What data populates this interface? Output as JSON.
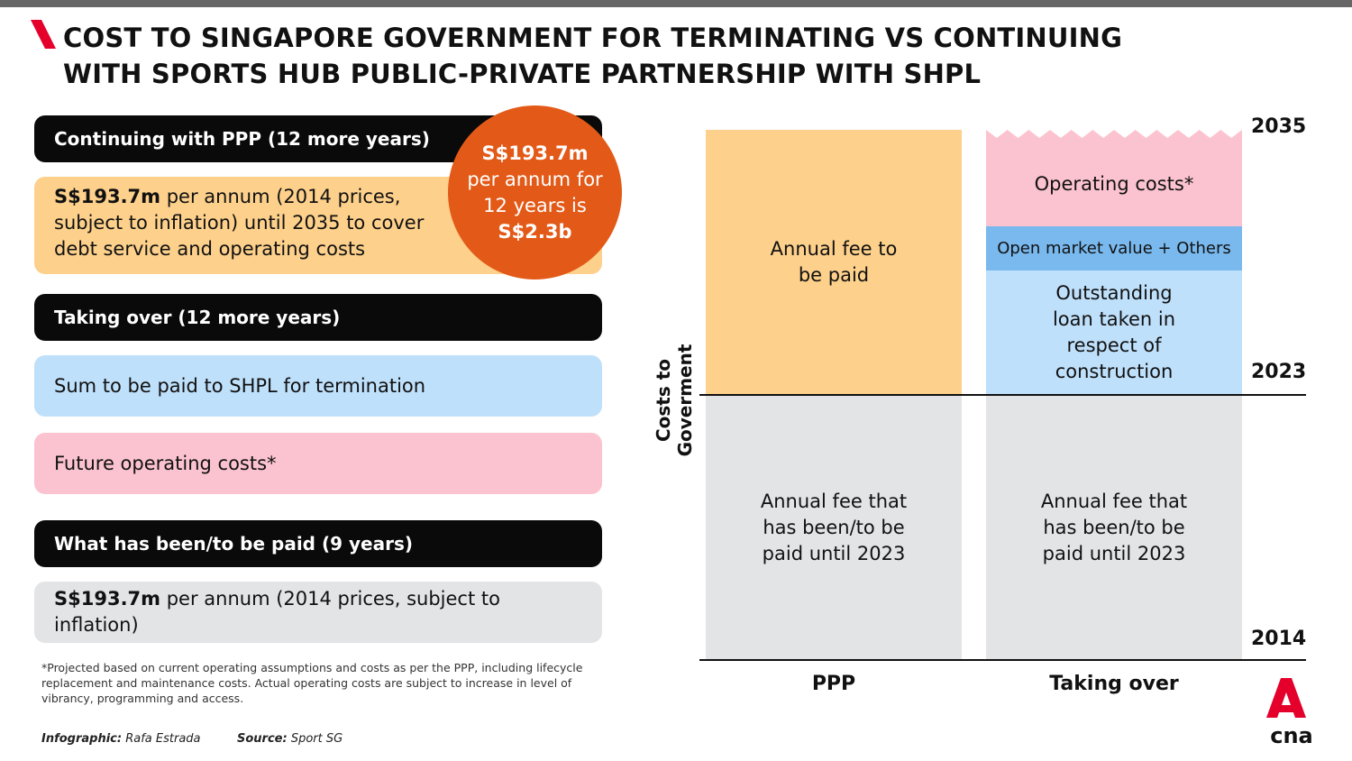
{
  "title": "COST TO SINGAPORE GOVERNMENT FOR TERMINATING VS CONTINUING WITH SPORTS HUB PUBLIC-PRIVATE PARTNERSHIP WITH SHPL",
  "left_panel": {
    "continuing_header": "Continuing with PPP (12 more years)",
    "continuing_amount": "S$193.7m",
    "continuing_text": " per annum (2014 prices, subject to inflation) until 2035 to cover debt service and operating costs",
    "taking_over_header": "Taking over (12 more years)",
    "sum_to_be_paid": "Sum to be paid to SHPL for termination",
    "future_operating": "Future operating costs*",
    "paid_header": "What has been/to be paid (9 years)",
    "paid_amount": "S$193.7m",
    "paid_text": " per annum (2014 prices, subject to inflation)"
  },
  "callout": {
    "line1": "S$193.7m",
    "line2": "per annum for",
    "line3": "12 years is",
    "line4": "S$2.3b"
  },
  "footnote": "*Projected based on current operating assumptions and costs as per the PPP, including lifecycle replacement and maintenance costs. Actual operating costs are subject to increase in level of vibrancy, programming and access.",
  "credits": {
    "infographic_label": "Infographic:",
    "infographic_name": "Rafa Estrada",
    "source_label": "Source:",
    "source_name": "Sport SG"
  },
  "chart": {
    "y_axis_label": "Costs to Goverment",
    "years": {
      "top": "2035",
      "middle": "2023",
      "bottom": "2014"
    },
    "categories": [
      "PPP",
      "Taking over"
    ],
    "ppp_top": "Annual fee to be paid",
    "ppp_bottom": "Annual fee that has been/to be paid until 2023",
    "to_operating": "Operating costs*",
    "to_open_market": "Open market value + Others",
    "to_loan": "Outstanding loan taken in respect of construction",
    "to_bottom": "Annual fee that has been/to be paid until 2023"
  },
  "colors": {
    "orange_fill": "#fdd08b",
    "grey_fill": "#e3e4e6",
    "pink_fill": "#fbc3cf",
    "light_blue_fill": "#bfe0fb",
    "mid_blue_fill": "#79b9ee",
    "callout": "#e35a18",
    "brand_red": "#e4002b"
  },
  "logo": {
    "text": "cna"
  }
}
